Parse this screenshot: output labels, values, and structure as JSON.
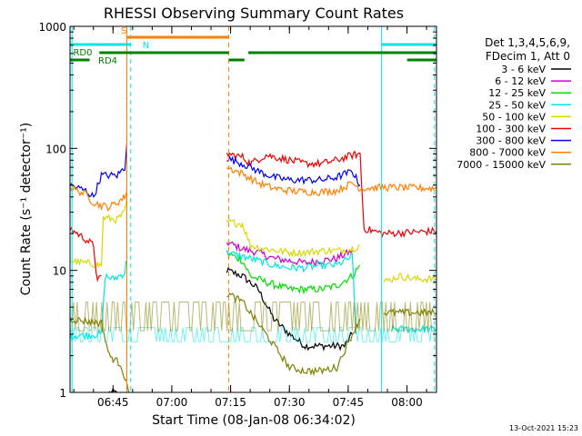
{
  "chart_data": {
    "type": "line",
    "title": "RHESSI Observing Summary Count Rates",
    "xlabel": "Start Time (08-Jan-08 06:34:02)",
    "ylabel": "Count Rate (s⁻¹ detector⁻¹)",
    "yscale": "log",
    "ylim": [
      1,
      1000
    ],
    "xlim_minutes": [
      0,
      93.5
    ],
    "x_unit": "minutes after 06:34:02",
    "x_ticks": [
      {
        "label": "06:45",
        "min": 10.97
      },
      {
        "label": "07:00",
        "min": 25.97
      },
      {
        "label": "07:15",
        "min": 40.97
      },
      {
        "label": "07:30",
        "min": 55.97
      },
      {
        "label": "07:45",
        "min": 70.97
      },
      {
        "label": "08:00",
        "min": 85.97
      }
    ],
    "y_ticks": [
      {
        "label": "1",
        "v": 1
      },
      {
        "label": "10",
        "v": 10
      },
      {
        "label": "100",
        "v": 100
      },
      {
        "label": "1000",
        "v": 1000
      }
    ],
    "legend_header": [
      "Det 1,3,4,5,6,9,",
      "FDecim 1, Att 0"
    ],
    "legend_position": "right",
    "timestamp": "13-Oct-2021 15:23",
    "series": [
      {
        "name": "3 - 6 keV",
        "color": "#000000",
        "lo": 1,
        "hi": 1,
        "segments": [
          [
            [
              10,
              1
            ],
            [
              12,
              1
            ]
          ],
          [
            [
              40,
              10
            ],
            [
              44,
              9
            ],
            [
              48,
              7
            ],
            [
              52,
              4
            ],
            [
              56,
              3
            ],
            [
              60,
              2.4
            ],
            [
              64,
              2.4
            ],
            [
              70,
              2.4
            ],
            [
              72,
              3
            ]
          ]
        ]
      },
      {
        "name": "6 - 12 keV",
        "color": "#cc00cc",
        "lo": 1,
        "hi": 1,
        "segments": [
          [
            [
              40,
              17
            ],
            [
              44,
              15
            ],
            [
              48,
              14
            ],
            [
              52,
              12.5
            ],
            [
              56,
              12
            ],
            [
              60,
              11.5
            ],
            [
              64,
              12
            ],
            [
              68,
              12.5
            ],
            [
              72,
              14.5
            ]
          ]
        ]
      },
      {
        "name": "12 - 25 keV",
        "color": "#00dd00",
        "lo": 1,
        "hi": 1,
        "segments": [
          [
            [
              40,
              14
            ],
            [
              44,
              12
            ],
            [
              46,
              9
            ],
            [
              50,
              8
            ],
            [
              56,
              7
            ],
            [
              60,
              7
            ],
            [
              64,
              7
            ],
            [
              68,
              7.5
            ],
            [
              72,
              9
            ],
            [
              74,
              11
            ]
          ]
        ]
      },
      {
        "name": "25 - 50 keV",
        "color": "#00e5e5",
        "lo": 2.6,
        "hi": 3.4,
        "segments": [
          [
            [
              0,
              2.9
            ],
            [
              8,
              3
            ],
            [
              9,
              9
            ],
            [
              11,
              8.5
            ],
            [
              14,
              9.5
            ],
            [
              14.3,
              12
            ]
          ],
          [
            [
              40,
              14
            ],
            [
              44,
              13
            ],
            [
              48,
              12
            ],
            [
              52,
              11
            ],
            [
              56,
              10.5
            ],
            [
              60,
              10.5
            ],
            [
              64,
              11
            ],
            [
              68,
              11
            ],
            [
              72,
              13
            ],
            [
              73,
              3
            ]
          ],
          [
            [
              82,
              3.3
            ],
            [
              88,
              3.3
            ],
            [
              93.5,
              3.3
            ]
          ]
        ]
      },
      {
        "name": "50 - 100 keV",
        "color": "#d8d800",
        "lo": 1,
        "hi": 1,
        "segments": [
          [
            [
              0,
              12
            ],
            [
              8,
              11
            ],
            [
              8.5,
              27
            ],
            [
              12,
              26
            ],
            [
              14,
              30
            ],
            [
              14.5,
              38
            ]
          ],
          [
            [
              40,
              25
            ],
            [
              44,
              24
            ],
            [
              46,
              16
            ],
            [
              50,
              15
            ],
            [
              56,
              14
            ],
            [
              60,
              14
            ],
            [
              64,
              14.5
            ],
            [
              68,
              14.5
            ],
            [
              72,
              15
            ],
            [
              74,
              16
            ]
          ],
          [
            [
              80,
              8
            ],
            [
              84,
              9
            ],
            [
              88,
              8.5
            ],
            [
              93.5,
              8.5
            ]
          ]
        ]
      },
      {
        "name": "100 - 300 keV",
        "color": "#ee0000",
        "lo": 1,
        "hi": 1,
        "segments": [
          [
            [
              0,
              22
            ],
            [
              4,
              18
            ],
            [
              6,
              16
            ],
            [
              7,
              8
            ],
            [
              8,
              9
            ]
          ],
          [
            [
              40,
              90
            ],
            [
              44,
              85
            ],
            [
              46,
              75
            ],
            [
              50,
              88
            ],
            [
              56,
              80
            ],
            [
              60,
              75
            ],
            [
              64,
              75
            ],
            [
              68,
              80
            ],
            [
              72,
              88
            ],
            [
              74,
              90
            ],
            [
              75,
              22
            ],
            [
              80,
              20
            ],
            [
              93.5,
              21
            ]
          ]
        ]
      },
      {
        "name": "300 - 800 keV",
        "color": "#0000ee",
        "lo": 1,
        "hi": 1,
        "segments": [
          [
            [
              0,
              50
            ],
            [
              4,
              45
            ],
            [
              6,
              40
            ],
            [
              8,
              60
            ],
            [
              12,
              60
            ],
            [
              14,
              70
            ],
            [
              14.5,
              110
            ]
          ],
          [
            [
              40,
              83
            ],
            [
              44,
              75
            ],
            [
              48,
              65
            ],
            [
              52,
              58
            ],
            [
              56,
              55
            ],
            [
              60,
              55
            ],
            [
              64,
              55
            ],
            [
              68,
              58
            ],
            [
              72,
              65
            ],
            [
              74,
              50
            ]
          ]
        ]
      },
      {
        "name": "800 - 7000 keV",
        "color": "#ff8000",
        "lo": 1,
        "hi": 1,
        "segments": [
          [
            [
              0,
              48
            ],
            [
              4,
              42
            ],
            [
              6,
              36
            ],
            [
              8,
              34
            ],
            [
              10,
              33
            ],
            [
              12,
              36
            ],
            [
              14,
              40
            ],
            [
              14.5,
              45
            ]
          ],
          [
            [
              40,
              70
            ],
            [
              44,
              62
            ],
            [
              48,
              52
            ],
            [
              52,
              47
            ],
            [
              56,
              45
            ],
            [
              60,
              44
            ],
            [
              64,
              44
            ],
            [
              68,
              45
            ],
            [
              72,
              52
            ],
            [
              74,
              47
            ],
            [
              80,
              48
            ],
            [
              93.5,
              47
            ]
          ]
        ]
      },
      {
        "name": "7000 - 15000 keV",
        "color": "#808000",
        "lo": 3.2,
        "hi": 5.5,
        "segments": [
          [
            [
              0,
              4
            ],
            [
              8,
              3.7
            ],
            [
              10,
              2
            ],
            [
              13,
              1.7
            ],
            [
              15,
              1
            ]
          ],
          [
            [
              40,
              6.5
            ],
            [
              44,
              5.5
            ],
            [
              50,
              3
            ],
            [
              56,
              1.6
            ],
            [
              60,
              1.5
            ],
            [
              64,
              1.5
            ],
            [
              68,
              1.6
            ],
            [
              72,
              3
            ],
            [
              74,
              4
            ]
          ],
          [
            [
              80,
              4.5
            ],
            [
              88,
              4.5
            ],
            [
              93.5,
              4.5
            ]
          ]
        ]
      }
    ],
    "flag_bars": [
      {
        "label": "S",
        "color": "#ff8000",
        "level": 1,
        "spans": [
          [
            14.5,
            40.5
          ]
        ]
      },
      {
        "label": "N",
        "color": "#00e5e5",
        "level": 2,
        "spans": [
          [
            0,
            15.5
          ],
          [
            79.5,
            93.5
          ]
        ]
      },
      {
        "label": "RD0",
        "color": "#008000",
        "level": 3,
        "spans": [
          [
            7.5,
            40.5
          ],
          [
            45.5,
            93.5
          ]
        ]
      },
      {
        "label": "RD4",
        "color": "#008000",
        "level": 4,
        "spans": [
          [
            0,
            5
          ],
          [
            40.5,
            44.5
          ],
          [
            86,
            93.5
          ]
        ]
      }
    ],
    "vertical_markers": [
      {
        "min": 0.5,
        "color": "#00e5e5",
        "style": "solid"
      },
      {
        "min": 14.5,
        "color": "#ff8000",
        "style": "solid"
      },
      {
        "min": 15.5,
        "color": "#00e5e5",
        "style": "dashed"
      },
      {
        "min": 40.5,
        "color": "#ff8000",
        "style": "dashed"
      },
      {
        "min": 79.5,
        "color": "#00e5e5",
        "style": "solid"
      },
      {
        "min": 93.0,
        "color": "#00e5e5",
        "style": "dashed"
      }
    ]
  }
}
